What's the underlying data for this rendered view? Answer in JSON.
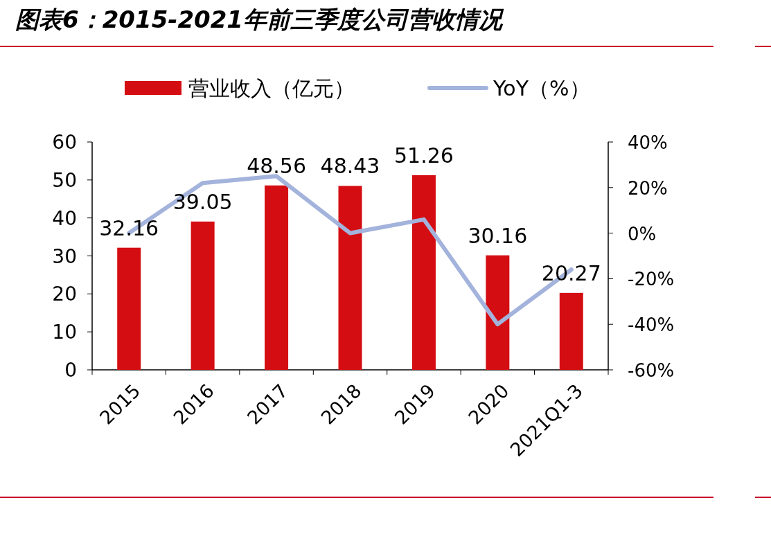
{
  "chart_data": {
    "type": "bar",
    "title": "图表6：2015-2021年前三季度公司营收情况",
    "categories": [
      "2015",
      "2016",
      "2017",
      "2018",
      "2019",
      "2020",
      "2021Q1-3"
    ],
    "series": [
      {
        "name": "营业收入（亿元）",
        "axis": "y",
        "color": "#d40d12",
        "values": [
          32.16,
          39.05,
          48.56,
          48.43,
          51.26,
          30.16,
          20.27
        ],
        "value_labels": [
          "32.16",
          "39.05",
          "48.56",
          "48.43",
          "51.26",
          "30.16",
          "20.27"
        ]
      },
      {
        "name": "YoY（%）",
        "type": "line",
        "axis": "y2",
        "color": "#a3b3dc",
        "values": [
          0,
          22,
          25,
          0,
          6,
          -40,
          -16
        ]
      }
    ],
    "ylim": [
      0,
      60
    ],
    "yticks": [
      0,
      10,
      20,
      30,
      40,
      50,
      60
    ],
    "y2lim": [
      -60,
      40
    ],
    "y2ticks": [
      {
        "value": -60,
        "label": "-60%"
      },
      {
        "value": -40,
        "label": "-40%"
      },
      {
        "value": -20,
        "label": "-20%"
      },
      {
        "value": 0,
        "label": "0%"
      },
      {
        "value": 20,
        "label": "20%"
      },
      {
        "value": 40,
        "label": "40%"
      }
    ],
    "legend": "top",
    "grid": false
  }
}
